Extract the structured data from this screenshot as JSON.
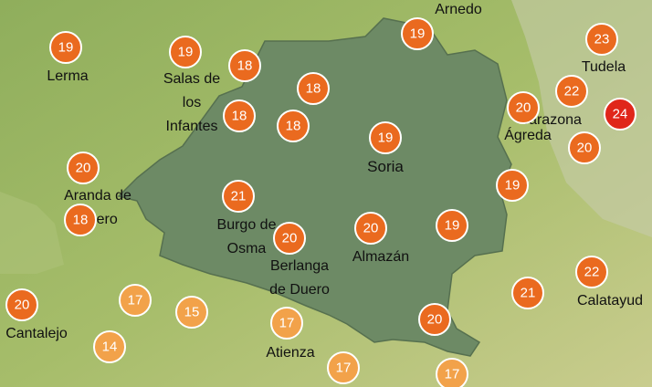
{
  "places": [
    {
      "lines": [
        "Arnedo"
      ]
    },
    {
      "lines": [
        "Lerma"
      ]
    },
    {
      "lines": [
        "Salas de",
        "los",
        "Infantes"
      ]
    },
    {
      "lines": [
        "Tudela"
      ]
    },
    {
      "lines": [
        "Tarazona"
      ]
    },
    {
      "lines": [
        "Ágreda"
      ]
    },
    {
      "lines": [
        "Soria"
      ]
    },
    {
      "lines": [
        "Aranda de",
        "Duero"
      ]
    },
    {
      "lines": [
        "Burgo de",
        "Osma"
      ]
    },
    {
      "lines": [
        "Almazán"
      ]
    },
    {
      "lines": [
        "Berlanga",
        "de Duero"
      ]
    },
    {
      "lines": [
        "Calatayud"
      ]
    },
    {
      "lines": [
        "Cantalejo"
      ]
    },
    {
      "lines": [
        "Atienza"
      ]
    }
  ],
  "temperatures": [
    19,
    19,
    18,
    19,
    23,
    18,
    22,
    20,
    18,
    18,
    19,
    20,
    20,
    19,
    21,
    18,
    20,
    19,
    20,
    22,
    21,
    20,
    17,
    15,
    17,
    20,
    14,
    17,
    17,
    24
  ]
}
